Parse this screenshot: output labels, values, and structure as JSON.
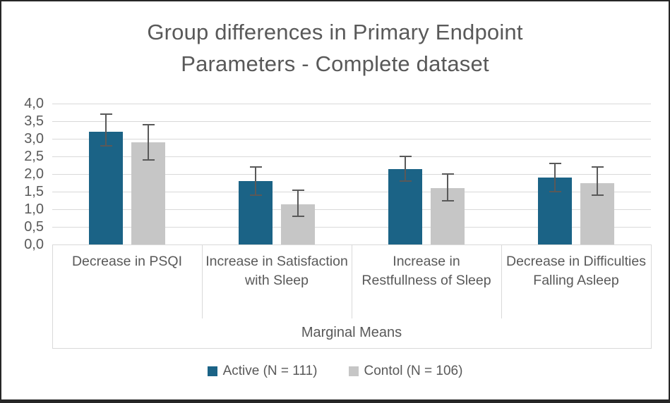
{
  "frame": {
    "background": "#ffffff",
    "border_color": "#262626"
  },
  "chart_data": {
    "type": "bar",
    "title": "Group differences in Primary Endpoint Parameters - Complete dataset",
    "title_lines": [
      "Group differences in Primary Endpoint",
      "Parameters - Complete dataset"
    ],
    "categories": [
      "Decrease in PSQI",
      "Increase in Satisfaction with Sleep",
      "Increase in Restfullness of Sleep",
      "Decrease in Difficulties Falling Asleep"
    ],
    "series": [
      {
        "name": "Active (N = 111)",
        "color": "#1B6386",
        "values": [
          3.2,
          1.8,
          2.15,
          1.9
        ],
        "ci_low": [
          2.8,
          1.4,
          1.8,
          1.5
        ],
        "ci_high": [
          3.7,
          2.2,
          2.5,
          2.3
        ]
      },
      {
        "name": "Contol (N = 106)",
        "color": "#C6C6C6",
        "values": [
          2.9,
          1.15,
          1.6,
          1.75
        ],
        "ci_low": [
          2.4,
          0.8,
          1.25,
          1.4
        ],
        "ci_high": [
          3.4,
          1.55,
          2.0,
          2.2
        ]
      }
    ],
    "xlabel": "Marginal Means",
    "ylabel": "",
    "ylim": [
      0,
      4
    ],
    "ytick_step": 0.5,
    "ytick_labels": [
      "0,0",
      "0,5",
      "1,0",
      "1,5",
      "2,0",
      "2,5",
      "3,0",
      "3,5",
      "4,0"
    ],
    "decimal_separator": ",",
    "grid": true,
    "gridline_color": "#D9D9D9",
    "error_bar_color": "#595959",
    "text_color": "#595959",
    "legend_position": "bottom"
  }
}
